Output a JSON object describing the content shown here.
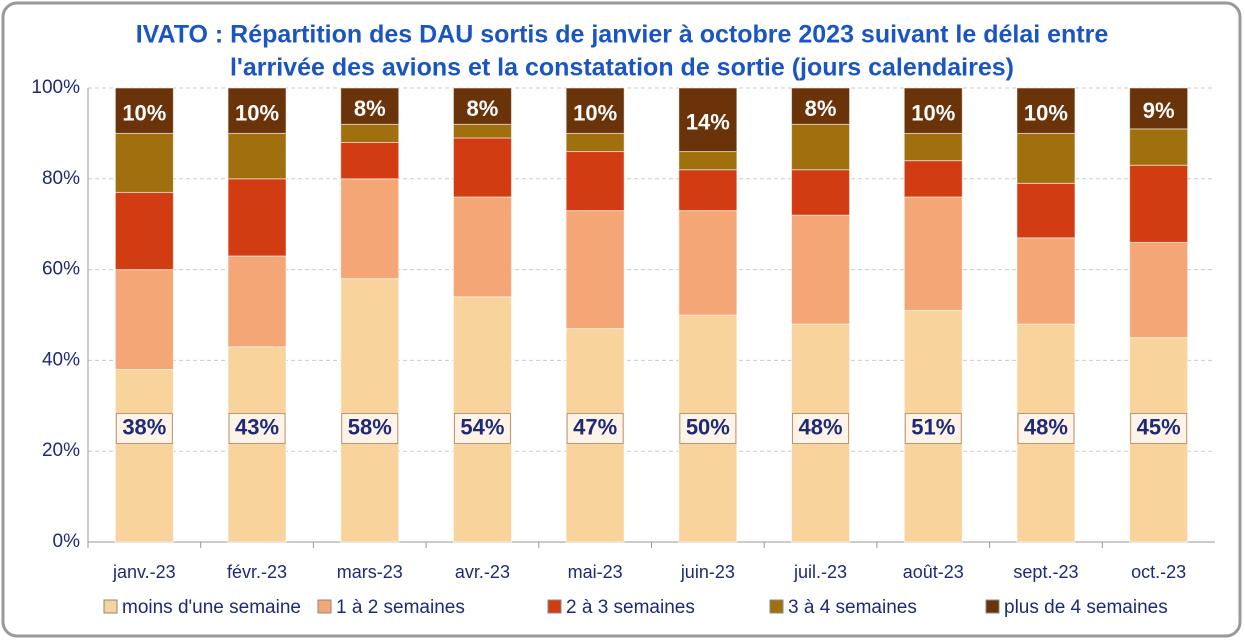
{
  "chart_data": {
    "type": "stacked_bar",
    "title": [
      "IVATO : Répartition des DAU sortis de janvier à octobre 2023 suivant le délai entre",
      "l'arrivée des avions et la constatation de sortie (jours calendaires)"
    ],
    "categories": [
      "janv.-23",
      "févr.-23",
      "mars-23",
      "avr.-23",
      "mai-23",
      "juin-23",
      "juil.-23",
      "août-23",
      "sept.-23",
      "oct.-23"
    ],
    "series": [
      {
        "name": "moins d'une semaine",
        "color": "#f8d39c",
        "values": [
          38,
          43,
          58,
          54,
          47,
          50,
          48,
          51,
          48,
          45
        ],
        "value_labels": [
          "38%",
          "43%",
          "58%",
          "54%",
          "47%",
          "50%",
          "48%",
          "51%",
          "48%",
          "45%"
        ]
      },
      {
        "name": "1 à 2 semaines",
        "color": "#f4a677",
        "values": [
          22,
          20,
          22,
          22,
          26,
          23,
          24,
          25,
          19,
          21
        ]
      },
      {
        "name": "2 à 3 semaines",
        "color": "#d23c12",
        "values": [
          17,
          17,
          8,
          13,
          13,
          9,
          10,
          8,
          12,
          17
        ]
      },
      {
        "name": "3 à 4 semaines",
        "color": "#a0700f",
        "values": [
          13,
          10,
          4,
          3,
          4,
          4,
          10,
          6,
          11,
          8
        ]
      },
      {
        "name": "plus de 4 semaines",
        "color": "#6b3309",
        "values": [
          10,
          10,
          8,
          8,
          10,
          14,
          8,
          10,
          10,
          9
        ],
        "value_labels": [
          "10%",
          "10%",
          "8%",
          "8%",
          "10%",
          "14%",
          "8%",
          "10%",
          "10%",
          "9%"
        ]
      }
    ],
    "ylim": [
      0,
      100
    ],
    "yticks": [
      {
        "value": 0,
        "label": "0%"
      },
      {
        "value": 20,
        "label": "20%"
      },
      {
        "value": 40,
        "label": "40%"
      },
      {
        "value": 60,
        "label": "60%"
      },
      {
        "value": 80,
        "label": "80%"
      },
      {
        "value": 100,
        "label": "100%"
      }
    ],
    "grid": true,
    "legend": "bottom"
  }
}
